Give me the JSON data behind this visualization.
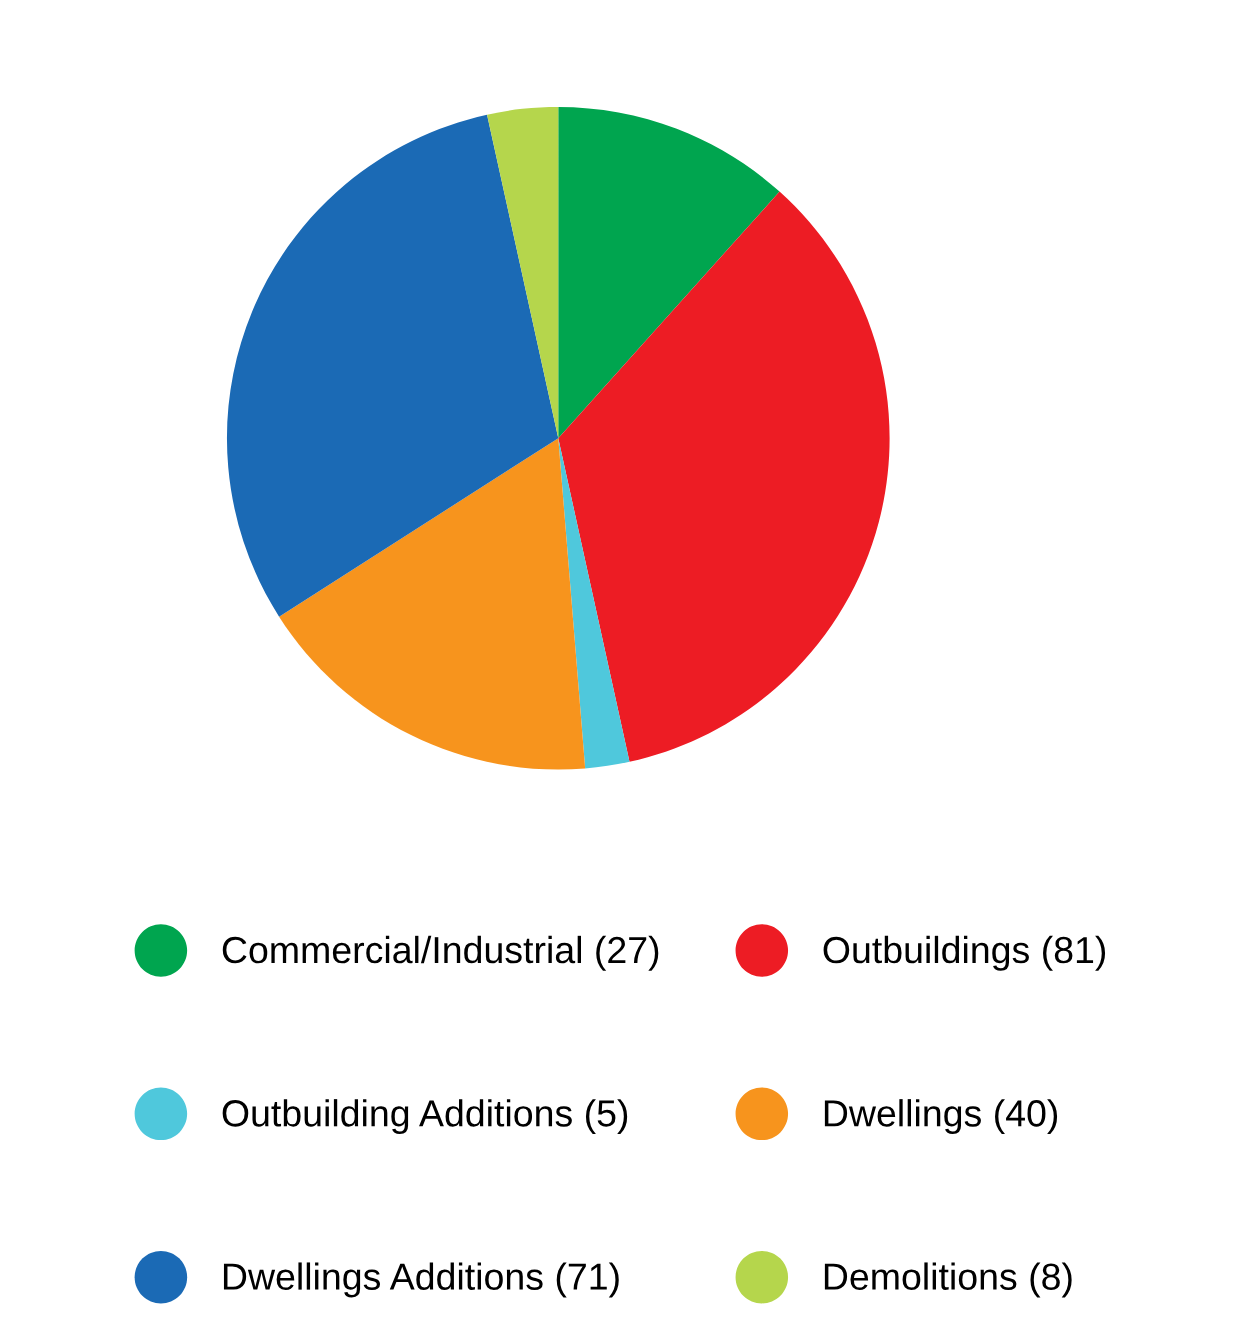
{
  "chart_data": {
    "type": "pie",
    "categories": [
      "Commercial/Industrial (27)",
      "Outbuildings (81)",
      "Outbuilding Additions (5)",
      "Dwellings (40)",
      "Dwellings Additions (71)",
      "Demolitions (8)"
    ],
    "values": [
      27,
      81,
      5,
      40,
      71,
      8
    ],
    "colors": [
      "#00a54f",
      "#ed1c24",
      "#4fc8dc",
      "#f7941d",
      "#1b6ab5",
      "#b5d64c"
    ],
    "legend": "bottom"
  }
}
